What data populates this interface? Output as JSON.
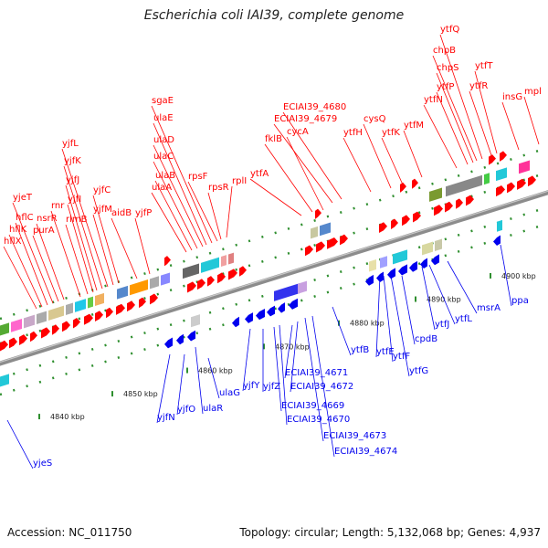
{
  "title": "Escherichia coli IAI39, complete genome",
  "footer": {
    "accession": "Accession: NC_011750",
    "summary": "Topology: circular; Length: 5,132,068 bp; Genes: 4,937"
  },
  "colors": {
    "forward": "#ff0000",
    "reverse": "#0000ee",
    "backbone": "#8c8c8c",
    "tick": "#2f8f2f"
  },
  "scale_labels": [
    "4840 kbp",
    "4850 kbp",
    "4860 kbp",
    "4870 kbp",
    "4880 kbp",
    "4890 kbp",
    "4900 kbp"
  ],
  "genes_forward": [
    "hflX",
    "hflK",
    "hflC",
    "yjeT",
    "purA",
    "nsrR",
    "rnr",
    "rlmB",
    "yjfI",
    "yjfJ",
    "yjfK",
    "yjfL",
    "yjfM",
    "yjfC",
    "aidB",
    "yjfP",
    "ulaA",
    "ulaB",
    "ulaC",
    "ulaD",
    "ulaE",
    "sgaE",
    "rpsF",
    "rpsR",
    "rplI",
    "ytfA",
    "fklB",
    "cycA",
    "ECIAI39_4679",
    "ECIAI39_4680",
    "ytfH",
    "cysQ",
    "ytfK",
    "ytfM",
    "ytfN",
    "ytfP",
    "chpS",
    "chpB",
    "ytfQ",
    "ytfR",
    "ytfT",
    "insG",
    "mpl"
  ],
  "genes_reverse": [
    "yjeS",
    "yjfN",
    "yjfO",
    "ulaR",
    "ulaG",
    "yjfY",
    "yjfZ",
    "ECIAI39_4669",
    "ECIAI39_4670",
    "ECIAI39_4671",
    "ECIAI39_4672",
    "ECIAI39_4673",
    "ECIAI39_4674",
    "ytfB",
    "ytfE",
    "ytfF",
    "ytfG",
    "cpdB",
    "ytfJ",
    "ytfL",
    "msrA",
    "ppa"
  ]
}
